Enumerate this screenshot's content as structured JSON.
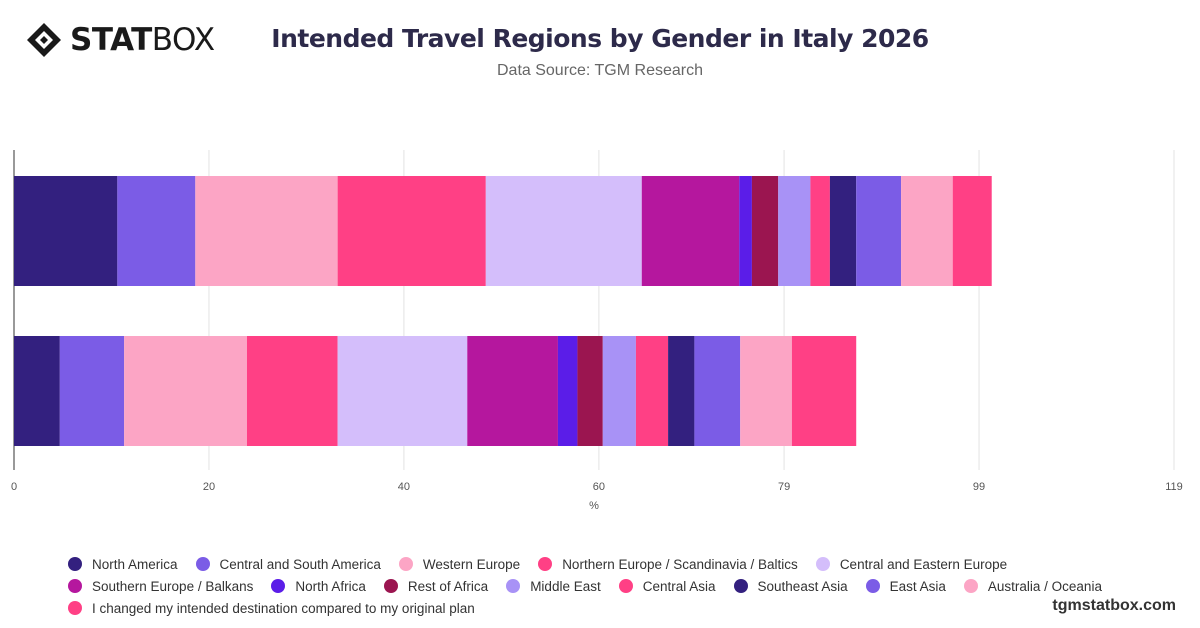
{
  "header": {
    "logo_bold": "STAT",
    "logo_light": "BOX",
    "title": "Intended Travel Regions by Gender in Italy 2026",
    "subtitle": "Data Source: TGM Research"
  },
  "footer": {
    "brand": "tgmstatbox.com"
  },
  "chart_data": {
    "type": "bar",
    "orientation": "horizontal",
    "stacked": true,
    "title": "Intended Travel Regions by Gender in Italy 2026",
    "subtitle": "Data Source: TGM Research",
    "xlabel": "%",
    "xlim": [
      0,
      119
    ],
    "x_ticks": [
      0,
      20,
      40,
      60,
      79,
      99,
      119
    ],
    "grid": true,
    "legend_position": "bottom",
    "categories": [
      "",
      ""
    ],
    "series": [
      {
        "name": "North America",
        "color": "#33207f",
        "values": [
          10.6,
          4.7
        ]
      },
      {
        "name": "Central and South America",
        "color": "#7b5ce6",
        "values": [
          8.0,
          6.6
        ]
      },
      {
        "name": "Western Europe",
        "color": "#fca5c5",
        "values": [
          14.6,
          12.6
        ]
      },
      {
        "name": "Northern Europe / Scandinavia / Baltics",
        "color": "#ff4085",
        "values": [
          15.2,
          9.3
        ]
      },
      {
        "name": "Central and Eastern Europe",
        "color": "#d4befb",
        "values": [
          16.0,
          13.3
        ]
      },
      {
        "name": "Southern Europe / Balkans",
        "color": "#b5179e",
        "values": [
          10.0,
          9.3
        ]
      },
      {
        "name": "North Africa",
        "color": "#5b1de8",
        "values": [
          1.3,
          2.0
        ]
      },
      {
        "name": "Rest of Africa",
        "color": "#9b1550",
        "values": [
          2.7,
          2.6
        ]
      },
      {
        "name": "Middle East",
        "color": "#a892f6",
        "values": [
          3.3,
          3.4
        ]
      },
      {
        "name": "Central Asia",
        "color": "#ff4085",
        "values": [
          2.0,
          3.3
        ]
      },
      {
        "name": "Southeast Asia",
        "color": "#33207f",
        "values": [
          2.7,
          2.7
        ]
      },
      {
        "name": "East Asia",
        "color": "#7b5ce6",
        "values": [
          4.6,
          4.7
        ]
      },
      {
        "name": "Australia / Oceania",
        "color": "#fca5c5",
        "values": [
          5.3,
          5.3
        ]
      },
      {
        "name": "I changed my intended destination compared to my original plan",
        "color": "#ff4085",
        "values": [
          4.0,
          6.6
        ]
      }
    ]
  }
}
